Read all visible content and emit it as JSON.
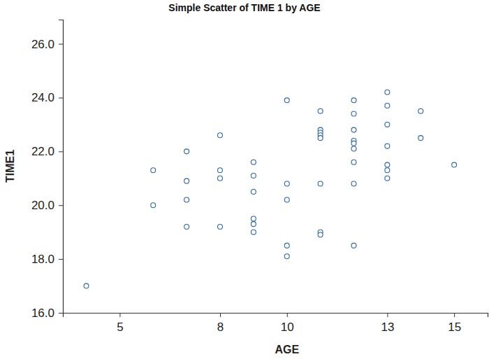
{
  "chart_data": {
    "type": "scatter",
    "title": "Simple Scatter of TIME 1 by AGE",
    "xlabel": "AGE",
    "ylabel": "TIME1",
    "color": "#2a64ad",
    "marker": "circle",
    "x": [
      4,
      6,
      6,
      7,
      7,
      7,
      7,
      8,
      8,
      8,
      8,
      9,
      9,
      9,
      9,
      9,
      9,
      10,
      10,
      10,
      10,
      10,
      11,
      11,
      11,
      11,
      11,
      11,
      11,
      11,
      12,
      12,
      12,
      12,
      12,
      12,
      12,
      12,
      12,
      13,
      13,
      13,
      13,
      13,
      13,
      13,
      14,
      14,
      15
    ],
    "y": [
      17.0,
      21.3,
      20.0,
      22.0,
      20.9,
      20.2,
      19.2,
      22.6,
      21.3,
      21.0,
      19.2,
      21.6,
      21.1,
      20.5,
      19.5,
      19.3,
      19.0,
      23.9,
      20.8,
      20.2,
      18.5,
      18.1,
      23.5,
      22.8,
      22.7,
      22.6,
      22.5,
      20.8,
      19.0,
      18.9,
      23.9,
      23.4,
      22.8,
      22.4,
      22.3,
      22.1,
      21.6,
      20.8,
      18.5,
      24.2,
      23.7,
      23.0,
      22.2,
      21.5,
      21.3,
      21.0,
      23.5,
      22.5,
      21.5
    ],
    "xlim": [
      3.3,
      16.0
    ],
    "ylim": [
      16.0,
      26.9
    ],
    "xticks": [
      5,
      8,
      10,
      13,
      15
    ],
    "yticks": [
      {
        "value": 16,
        "label": "16.0"
      },
      {
        "value": 18,
        "label": "18.0"
      },
      {
        "value": 20,
        "label": "20.0"
      },
      {
        "value": 22,
        "label": "22.0"
      },
      {
        "value": 24,
        "label": "24.0"
      },
      {
        "value": 26,
        "label": "26.0"
      }
    ]
  }
}
